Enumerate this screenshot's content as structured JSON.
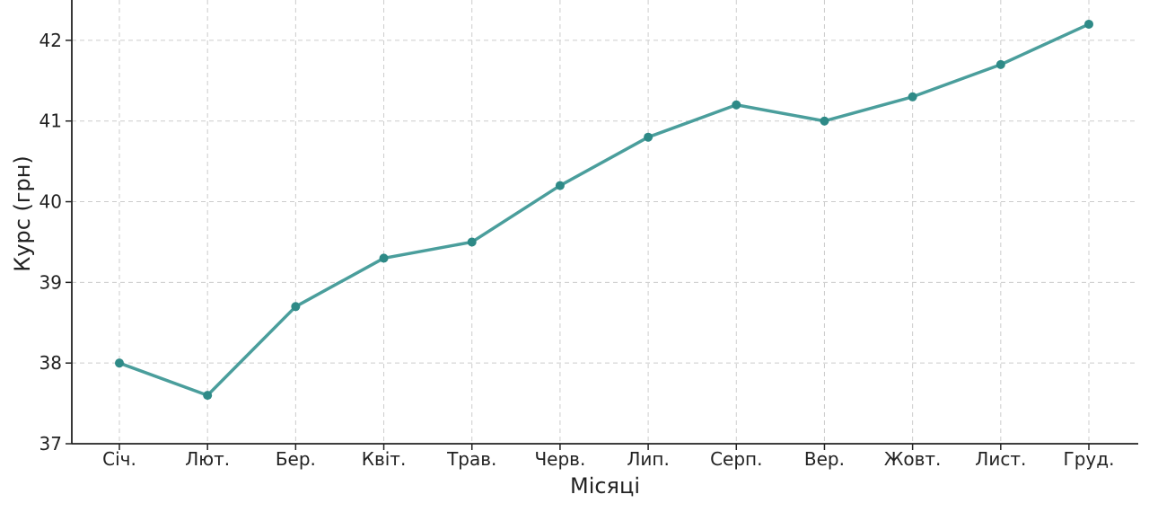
{
  "chart_data": {
    "type": "line",
    "title": "",
    "xlabel": "Місяці",
    "ylabel": "Курс (грн)",
    "categories": [
      "Січ.",
      "Лют.",
      "Бер.",
      "Квіт.",
      "Трав.",
      "Черв.",
      "Лип.",
      "Серп.",
      "Вер.",
      "Жовт.",
      "Лист.",
      "Груд."
    ],
    "series": [
      {
        "values": [
          38.0,
          37.6,
          38.7,
          39.3,
          39.5,
          40.2,
          40.8,
          41.2,
          41.0,
          41.3,
          41.7,
          42.2
        ]
      }
    ],
    "ylim": [
      37,
      42.5
    ],
    "yticks": [
      37,
      38,
      39,
      40,
      41,
      42
    ],
    "grid": true,
    "line_color": "#4a9e9c",
    "marker_color": "#2e8a87"
  }
}
